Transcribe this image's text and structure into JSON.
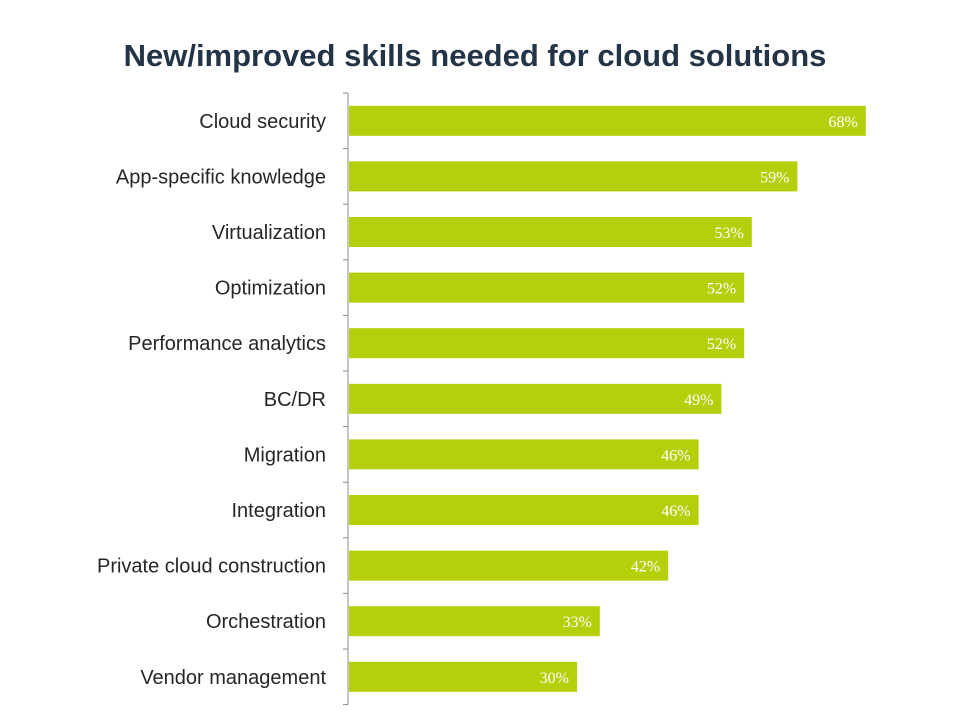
{
  "chart_data": {
    "type": "bar",
    "orientation": "horizontal",
    "title": "New/improved skills needed for cloud solutions",
    "xlabel": "",
    "ylabel": "",
    "categories": [
      "Cloud security",
      "App-specific knowledge",
      "Virtualization",
      "Optimization",
      "Performance analytics",
      "BC/DR",
      "Migration",
      "Integration",
      "Private cloud construction",
      "Orchestration",
      "Vendor management"
    ],
    "values": [
      68,
      59,
      53,
      52,
      52,
      49,
      46,
      46,
      42,
      33,
      30
    ],
    "value_labels": [
      "68%",
      "59%",
      "53%",
      "52%",
      "52%",
      "49%",
      "46%",
      "46%",
      "42%",
      "33%",
      "30%"
    ],
    "xlim": [
      0,
      80
    ],
    "grid": false,
    "legend": "none",
    "bar_color": "#b5cf0b",
    "axis_color": "#8c8c8c"
  }
}
